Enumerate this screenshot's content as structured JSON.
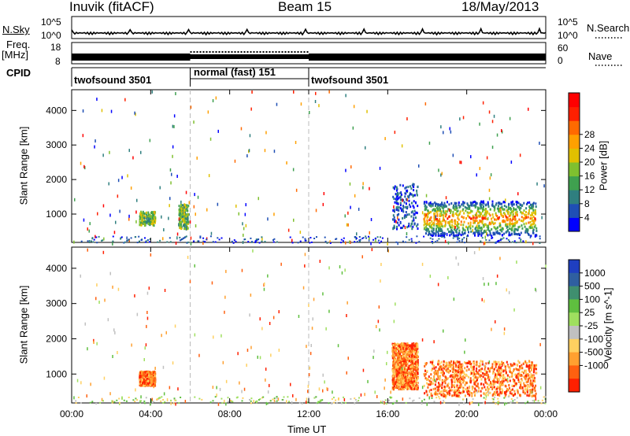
{
  "header": {
    "station": "Inuvik (fitACF)",
    "beam": "Beam 15",
    "date": "18/May/2013"
  },
  "strips": {
    "nsky_label": "N.Sky",
    "nsky_ticks": [
      "10^5",
      "10^0"
    ],
    "nsearch_label": "N.Search",
    "nsearch_ticks": [
      "10^5",
      "10^0"
    ],
    "freq_label_1": "Freq.",
    "freq_label_2": "[MHz]",
    "freq_ticks": [
      "18",
      "8"
    ],
    "nave_label": "Nave",
    "nave_ticks": [
      "60",
      "0"
    ],
    "cpid_label": "CPID",
    "cpid_segments": [
      {
        "label": "twofsound 3501",
        "start": 0,
        "end": 6
      },
      {
        "label": "normal (fast) 151",
        "start": 6,
        "end": 12
      },
      {
        "label": "twofsound 3501",
        "start": 12,
        "end": 24
      }
    ]
  },
  "chart_data": [
    {
      "type": "heatmap",
      "panel": "power",
      "xlabel": "Time UT",
      "ylabel": "Slant Range [km]",
      "xlim": [
        0,
        24
      ],
      "ylim": [
        180,
        4600
      ],
      "xticks": [
        "00:00",
        "04:00",
        "08:00",
        "12:00",
        "16:00",
        "20:00",
        "00:00"
      ],
      "yticks": [
        1000,
        2000,
        3000,
        4000
      ],
      "colorbar": {
        "label": "Power [dB]",
        "ticks": [
          "4",
          "8",
          "12",
          "16",
          "20",
          "24",
          "28"
        ],
        "colors": [
          "#0000ff",
          "#1f4fb5",
          "#2f7f7f",
          "#3fa04f",
          "#7fc02f",
          "#e0c000",
          "#ffa000",
          "#ff6a00",
          "#ff2000",
          "#ff0000"
        ]
      },
      "regions": [
        {
          "t0": 17.8,
          "t1": 23.5,
          "r0": 400,
          "r1": 1400,
          "level": "high"
        },
        {
          "t0": 16.2,
          "t1": 17.5,
          "r0": 600,
          "r1": 1900,
          "level": "low"
        },
        {
          "t0": 3.4,
          "t1": 4.2,
          "r0": 700,
          "r1": 1100,
          "level": "mid"
        },
        {
          "t0": 5.4,
          "t1": 5.9,
          "r0": 600,
          "r1": 1300,
          "level": "mid"
        }
      ]
    },
    {
      "type": "heatmap",
      "panel": "velocity",
      "xlabel": "Time UT",
      "ylabel": "Slant Range [km]",
      "xlim": [
        0,
        24
      ],
      "ylim": [
        180,
        4600
      ],
      "xticks": [
        "00:00",
        "04:00",
        "08:00",
        "12:00",
        "16:00",
        "20:00",
        "00:00"
      ],
      "yticks": [
        1000,
        2000,
        3000,
        4000
      ],
      "colorbar": {
        "label": "Velocity [m s^-1]",
        "ticks": [
          "1000",
          "500",
          "100",
          "25",
          "-25",
          "-100",
          "-500",
          "-1000"
        ],
        "colors": [
          "#1f3fc0",
          "#2f5fa0",
          "#3f8f6f",
          "#5fbf3f",
          "#9fdf5f",
          "#c0c0c0",
          "#ffd060",
          "#ffa030",
          "#ff6010",
          "#ff2000"
        ]
      },
      "regions": [
        {
          "t0": 17.8,
          "t1": 23.5,
          "r0": 400,
          "r1": 1400,
          "level": "negative"
        },
        {
          "t0": 16.2,
          "t1": 17.5,
          "r0": 600,
          "r1": 1900,
          "level": "negative"
        },
        {
          "t0": 3.4,
          "t1": 4.2,
          "r0": 700,
          "r1": 1100,
          "level": "negative"
        }
      ]
    }
  ]
}
